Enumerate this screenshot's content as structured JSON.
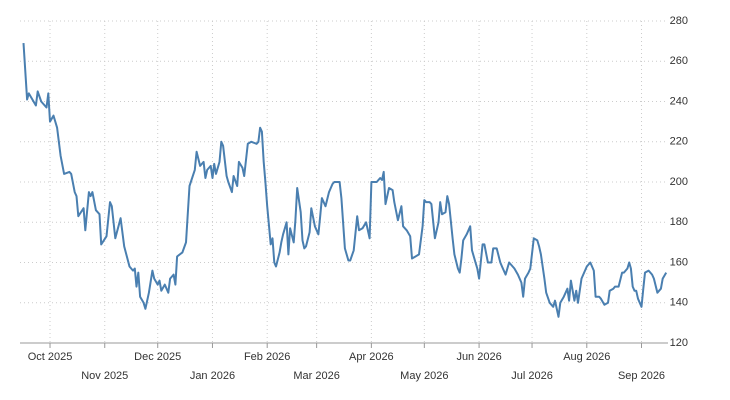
{
  "chart_data": {
    "type": "line",
    "color": "#4a7fb0",
    "x": [
      -15,
      -13,
      -12,
      -8,
      -7,
      -5,
      -2,
      -1,
      0,
      2,
      4,
      6,
      8,
      11,
      12,
      14,
      15,
      16,
      19,
      20,
      22,
      23,
      24,
      26,
      28,
      29,
      32,
      34,
      35,
      37,
      40,
      42,
      45,
      47,
      48,
      49,
      50,
      51,
      53,
      54,
      56,
      58,
      59,
      61,
      62,
      63,
      65,
      67,
      68,
      70,
      71,
      72,
      75,
      77,
      79,
      82,
      83,
      85,
      87,
      88,
      89,
      91,
      92,
      93,
      94,
      96,
      97,
      98,
      100,
      101,
      103,
      104,
      106,
      107,
      109,
      110,
      112,
      114,
      117,
      118,
      119,
      120,
      121,
      122,
      123,
      125,
      126,
      127,
      128,
      130,
      131,
      132,
      134,
      135,
      136,
      138,
      139,
      140,
      142,
      143,
      144,
      145,
      147,
      148,
      150,
      152,
      153,
      154,
      156,
      158,
      160,
      161,
      164,
      165,
      167,
      169,
      170,
      172,
      174,
      175,
      177,
      179,
      181,
      182,
      185,
      187,
      188,
      189,
      190,
      192,
      194,
      195,
      197,
      199,
      200,
      202,
      204,
      205,
      207,
      209,
      211,
      212,
      213,
      215,
      216,
      218,
      220,
      221,
      222,
      224,
      225,
      226,
      228,
      229,
      231,
      232,
      233,
      234,
      236,
      238,
      239,
      241,
      242,
      243,
      245,
      246,
      248,
      250,
      251,
      253,
      255,
      256,
      258,
      260,
      261,
      263,
      265,
      267,
      268,
      269,
      271,
      272,
      274,
      276,
      277,
      278,
      280,
      281,
      283,
      285,
      286,
      288,
      289,
      291,
      293,
      294,
      295,
      297,
      298,
      299,
      301,
      303,
      304,
      306,
      308,
      309,
      311,
      312,
      314,
      316,
      317,
      319,
      320,
      322,
      324,
      325,
      327,
      328,
      329,
      330,
      331,
      332,
      333,
      335,
      336,
      337,
      339,
      341,
      342,
      344,
      346,
      347,
      349
    ],
    "values": [
      269,
      241,
      244,
      238,
      245,
      240,
      237,
      244,
      230,
      233,
      227,
      213,
      204,
      205,
      204,
      195,
      193,
      183,
      187,
      176,
      195,
      193,
      195,
      186,
      184,
      169,
      173,
      190,
      188,
      172,
      182,
      168,
      158,
      156,
      157,
      148,
      155,
      143,
      140,
      137,
      145,
      156,
      152,
      149,
      151,
      146,
      149,
      145,
      152,
      154,
      149,
      163,
      165,
      170,
      198,
      206,
      215,
      208,
      210,
      202,
      206,
      208,
      202,
      209,
      204,
      210,
      220,
      218,
      203,
      200,
      195,
      203,
      198,
      210,
      207,
      203,
      219,
      220,
      219,
      220,
      227,
      225,
      210,
      200,
      188,
      169,
      172,
      160,
      158,
      165,
      170,
      174,
      180,
      164,
      177,
      170,
      181,
      197,
      185,
      171,
      167,
      168,
      175,
      187,
      178,
      174,
      183,
      192,
      188,
      195,
      199,
      200,
      200,
      192,
      167,
      161,
      161,
      166,
      183,
      176,
      177,
      180,
      172,
      200,
      200,
      202,
      201,
      205,
      189,
      197,
      196,
      190,
      181,
      188,
      178,
      176,
      173,
      162,
      163,
      164,
      178,
      191,
      190,
      190,
      189,
      172,
      180,
      190,
      184,
      185,
      193,
      189,
      172,
      164,
      157,
      155,
      162,
      171,
      174,
      178,
      166,
      160,
      157,
      152,
      169,
      169,
      160,
      160,
      167,
      167,
      160,
      158,
      154,
      160,
      159,
      157,
      154,
      150,
      143,
      152,
      155,
      157,
      172,
      171,
      168,
      164,
      152,
      145,
      140,
      138,
      141,
      133,
      140,
      143,
      147,
      141,
      151,
      141,
      146,
      140,
      152,
      156,
      158,
      160,
      156,
      143,
      143,
      142,
      139,
      140,
      146,
      147,
      148,
      148,
      155,
      155,
      157,
      160,
      157,
      148,
      146,
      146,
      142,
      138,
      147,
      155,
      156,
      154,
      152,
      145,
      147,
      152,
      155
    ],
    "xlim": [
      -17,
      350
    ],
    "xticks": [
      {
        "value": 0,
        "label": "Oct 2025"
      },
      {
        "value": 31,
        "label": "Nov 2025"
      },
      {
        "value": 61,
        "label": "Dec 2025"
      },
      {
        "value": 92,
        "label": "Jan 2026"
      },
      {
        "value": 123,
        "label": "Feb 2026"
      },
      {
        "value": 151,
        "label": "Mar 2026"
      },
      {
        "value": 182,
        "label": "Apr 2026"
      },
      {
        "value": 212,
        "label": "May 2026"
      },
      {
        "value": 243,
        "label": "Jun 2026"
      },
      {
        "value": 273,
        "label": "Jul 2026"
      },
      {
        "value": 304,
        "label": "Aug 2026"
      },
      {
        "value": 335,
        "label": "Sep 2026"
      }
    ],
    "ylim": [
      120,
      280
    ],
    "yticks": [
      120,
      140,
      160,
      180,
      200,
      220,
      240,
      260,
      280
    ],
    "grid": true
  }
}
